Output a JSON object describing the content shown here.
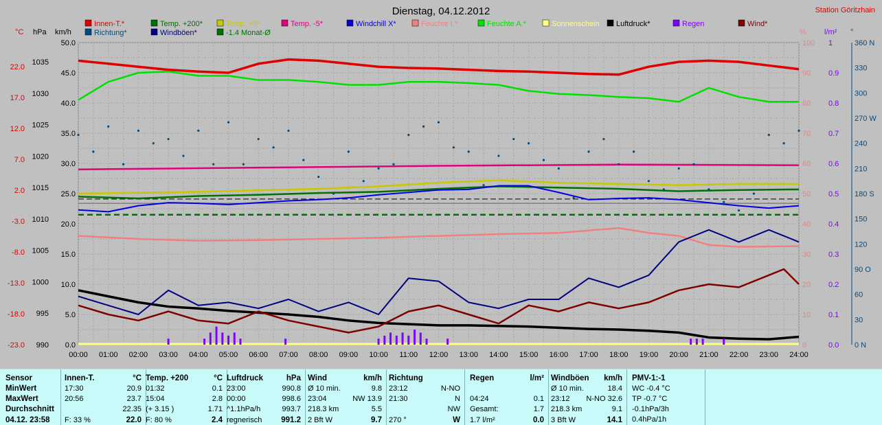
{
  "title": "Dienstag, 04.12.2012",
  "station": "Station Göritzhain",
  "legend": [
    {
      "label": "Innen-T.*",
      "color": "#e00000"
    },
    {
      "label": "Temp. +200*",
      "color": "#007000"
    },
    {
      "label": "Temp. +5*",
      "color": "#c8c800"
    },
    {
      "label": "Temp. -5*",
      "color": "#e0007c"
    },
    {
      "label": "Windchill X*",
      "color": "#0000e8"
    },
    {
      "label": "Feuchte I.*",
      "color": "#f08080"
    },
    {
      "label": "Feuchte A.*",
      "color": "#00e000"
    },
    {
      "label": "Sonnenschein",
      "color": "#ffff80"
    },
    {
      "label": "Luftdruck*",
      "color": "#000000"
    },
    {
      "label": "Regen",
      "color": "#8000ff"
    },
    {
      "label": "Wind*",
      "color": "#800000"
    },
    {
      "label": "Richtung*",
      "color": "#004a80"
    },
    {
      "label": "Windböen*",
      "color": "#000080"
    },
    {
      "label": "-1.4 Monat-Ø",
      "color": "#007000"
    }
  ],
  "axis_units": {
    "temp": "°C",
    "press": "hPa",
    "wind": "km/h",
    "hum": "%",
    "rain": "l/m²",
    "dir": "°"
  },
  "chart_data": {
    "type": "line",
    "x_ticks": [
      "00:00",
      "01:00",
      "02:00",
      "03:00",
      "04:00",
      "05:00",
      "06:00",
      "07:00",
      "08:00",
      "09:00",
      "10:00",
      "11:00",
      "12:00",
      "13:00",
      "14:00",
      "15:00",
      "16:00",
      "17:00",
      "18:00",
      "19:00",
      "20:00",
      "21:00",
      "22:00",
      "23:00",
      "24:00"
    ],
    "temp_ticks": [
      "22.0",
      "17.0",
      "12.0",
      "7.0",
      "2.0",
      "-3.0",
      "-8.0",
      "-13.0",
      "-18.0",
      "-23.0"
    ],
    "press_ticks": [
      "1035",
      "1030",
      "1025",
      "1020",
      "1015",
      "1010",
      "1005",
      "1000",
      "995",
      "990"
    ],
    "wind_ticks": [
      "50.0",
      "45.0",
      "40.0",
      "35.0",
      "30.0",
      "25.0",
      "20.0",
      "15.0",
      "10.0",
      "5.0",
      "0.0"
    ],
    "hum_ticks": [
      "100",
      "90",
      "80",
      "70",
      "60",
      "50",
      "40",
      "30",
      "20",
      "10",
      "0"
    ],
    "rain_ticks": [
      "1",
      "0.9",
      "0.8",
      "0.7",
      "0.6",
      "0.5",
      "0.4",
      "0.3",
      "0.2",
      "0.1",
      "0.0"
    ],
    "dir_ticks": [
      "360 N",
      "330",
      "300",
      "270 W",
      "240",
      "210",
      "180 S",
      "150",
      "120",
      "90 O",
      "60",
      "30",
      "0 N"
    ],
    "wind_range": [
      0,
      50
    ],
    "grid": true,
    "legend_position": "top",
    "series": [
      {
        "name": "Innen-T.*",
        "axis": "wind",
        "x": [
          0,
          1,
          2,
          3,
          4,
          5,
          6,
          7,
          8,
          9,
          10,
          11,
          12,
          13,
          14,
          15,
          16,
          17,
          18,
          19,
          20,
          21,
          22,
          23,
          24
        ],
        "y": [
          47.0,
          46.5,
          46.0,
          45.5,
          45.2,
          45.0,
          46.5,
          47.2,
          47.0,
          46.5,
          46.0,
          45.8,
          45.7,
          45.5,
          45.3,
          45.2,
          45.0,
          44.8,
          44.7,
          46.0,
          46.8,
          47.0,
          46.8,
          46.2,
          45.6
        ]
      },
      {
        "name": "Feuchte A.*",
        "axis": "wind",
        "x": [
          0,
          0.5,
          1,
          2,
          3,
          4,
          5,
          6,
          7,
          8,
          9,
          10,
          11,
          12,
          13,
          14,
          15,
          16,
          17,
          18,
          19,
          20,
          21,
          22,
          23,
          24
        ],
        "y": [
          40.5,
          42.0,
          43.5,
          45.0,
          45.2,
          44.5,
          44.5,
          43.8,
          43.8,
          43.5,
          43.0,
          43.0,
          43.5,
          43.5,
          43.3,
          43.0,
          42.0,
          41.5,
          41.3,
          41.0,
          40.8,
          40.2,
          42.5,
          41.0,
          40.2,
          40.2
        ]
      },
      {
        "name": "Temp. -5*",
        "axis": "wind",
        "x": [
          0,
          6,
          12,
          18,
          24
        ],
        "y": [
          29.0,
          29.3,
          29.6,
          29.8,
          29.7
        ]
      },
      {
        "name": "Temp. +5*",
        "axis": "wind",
        "x": [
          0,
          4,
          8,
          10,
          12,
          14,
          16,
          18,
          20,
          22,
          24
        ],
        "y": [
          25.0,
          25.3,
          25.8,
          26.2,
          26.8,
          27.2,
          26.8,
          26.6,
          26.4,
          26.6,
          26.6
        ]
      },
      {
        "name": "Temp. +200*",
        "axis": "wind",
        "x": [
          0,
          2,
          4,
          6,
          8,
          10,
          12,
          14,
          16,
          18,
          20,
          22,
          24
        ],
        "y": [
          24.5,
          24.2,
          24.6,
          24.8,
          25.1,
          25.3,
          25.8,
          26.2,
          26.0,
          25.8,
          25.4,
          25.6,
          25.7
        ]
      },
      {
        "name": "Windchill X*",
        "axis": "wind",
        "x": [
          0,
          1,
          2,
          3,
          4,
          5,
          6,
          7,
          8,
          9,
          10,
          11,
          12,
          13,
          14,
          15,
          16,
          17,
          18,
          19,
          20,
          21,
          22,
          23,
          24
        ],
        "y": [
          22.3,
          22.0,
          23.0,
          23.5,
          23.4,
          23.2,
          23.5,
          23.8,
          24.0,
          24.3,
          24.8,
          25.2,
          25.6,
          25.7,
          26.3,
          26.3,
          25.2,
          24.0,
          24.2,
          24.3,
          24.0,
          23.5,
          23.0,
          22.6,
          23.0
        ]
      },
      {
        "name": "Feuchte I.*",
        "axis": "wind",
        "x": [
          0,
          2,
          4,
          6,
          8,
          10,
          12,
          14,
          16,
          18,
          19,
          20,
          21,
          22,
          24
        ],
        "y": [
          18.0,
          17.5,
          17.2,
          17.3,
          17.5,
          17.7,
          18.0,
          18.3,
          18.5,
          19.3,
          18.5,
          18.0,
          16.5,
          16.2,
          16.3
        ]
      },
      {
        "name": "Luftdruck*",
        "axis": "wind",
        "x": [
          0,
          1,
          2,
          3,
          4,
          5,
          6,
          7,
          8,
          9,
          10,
          11,
          12,
          13,
          14,
          15,
          16,
          17,
          18,
          19,
          20,
          21,
          22,
          23,
          24
        ],
        "y": [
          9.0,
          8.0,
          7.0,
          6.3,
          6.0,
          5.6,
          5.3,
          5.0,
          4.6,
          4.0,
          3.6,
          3.4,
          3.2,
          3.2,
          3.1,
          3.0,
          2.8,
          2.6,
          2.5,
          2.3,
          2.0,
          1.2,
          1.0,
          0.9,
          1.3
        ]
      },
      {
        "name": "Wind*",
        "axis": "wind",
        "x": [
          0,
          1,
          2,
          3,
          4,
          5,
          6,
          7,
          8,
          9,
          10,
          11,
          12,
          13,
          14,
          15,
          16,
          17,
          18,
          19,
          20,
          21,
          22,
          23,
          23.5,
          24
        ],
        "y": [
          6.5,
          5.0,
          4.0,
          5.5,
          4.0,
          3.5,
          5.5,
          4.0,
          3.0,
          2.0,
          3.0,
          5.5,
          6.5,
          5.0,
          3.5,
          6.5,
          5.5,
          7.0,
          6.0,
          7.0,
          9.0,
          10.0,
          9.5,
          11.5,
          12.5,
          10.0
        ]
      },
      {
        "name": "Windböen*",
        "axis": "wind",
        "x": [
          0,
          1,
          2,
          3,
          4,
          5,
          6,
          7,
          8,
          9,
          10,
          11,
          12,
          13,
          14,
          15,
          16,
          17,
          18,
          19,
          20,
          21,
          22,
          23,
          24
        ],
        "y": [
          8.0,
          6.5,
          5.0,
          9.0,
          6.5,
          7.0,
          6.0,
          7.5,
          5.5,
          7.0,
          5.0,
          11.0,
          10.5,
          7.0,
          6.0,
          7.5,
          7.5,
          11.0,
          9.5,
          11.5,
          17.0,
          19.0,
          17.0,
          19.0,
          17.0
        ]
      },
      {
        "name": "Richtung*",
        "axis": "dir",
        "type": "scatter",
        "x": [
          0,
          0.5,
          1,
          1.5,
          2,
          2.5,
          3,
          3.5,
          4,
          4.5,
          5,
          5.5,
          6,
          6.5,
          7,
          7.5,
          8,
          8.5,
          9,
          9.5,
          10,
          10.5,
          11,
          11.5,
          12,
          12.5,
          13,
          13.5,
          14,
          14.5,
          15,
          15.5,
          16,
          16.5,
          17,
          17.5,
          18,
          18.5,
          19,
          19.5,
          20,
          20.5,
          21,
          21.5,
          22,
          22.5,
          23,
          23.5,
          24
        ],
        "y": [
          250,
          230,
          260,
          215,
          255,
          240,
          245,
          225,
          255,
          215,
          265,
          215,
          245,
          235,
          255,
          220,
          200,
          180,
          230,
          195,
          210,
          215,
          250,
          260,
          265,
          235,
          230,
          190,
          225,
          245,
          240,
          220,
          210,
          175,
          230,
          245,
          215,
          230,
          195,
          185,
          210,
          215,
          185,
          170,
          160,
          180,
          250,
          240,
          255
        ]
      },
      {
        "name": "Regen",
        "axis": "rain",
        "type": "bar",
        "x": [
          3.0,
          4.2,
          4.4,
          4.6,
          4.8,
          5.0,
          5.2,
          5.4,
          6.9,
          10.0,
          10.2,
          10.4,
          10.6,
          10.8,
          11.0,
          11.2,
          11.4,
          11.6,
          12.3,
          20.4,
          20.6,
          20.8,
          21.5
        ],
        "y": [
          0.02,
          0.02,
          0.04,
          0.06,
          0.04,
          0.03,
          0.04,
          0.02,
          0.02,
          0.02,
          0.03,
          0.04,
          0.03,
          0.04,
          0.03,
          0.05,
          0.04,
          0.02,
          0.02,
          0.02,
          0.02,
          0.02,
          0.02
        ]
      },
      {
        "name": "-1.4 Monat-Ø",
        "axis": "wind",
        "style": "dashed",
        "x": [
          0,
          24
        ],
        "y": [
          21.5,
          21.5
        ]
      }
    ],
    "reference_lines": [
      {
        "y": 23.4,
        "color": "#606060",
        "style": "solid"
      },
      {
        "y": 24.1,
        "color": "#000000",
        "style": "dashed"
      }
    ]
  },
  "stats": {
    "rowlabels": {
      "header": "Sensor",
      "min": "MinWert",
      "max": "MaxWert",
      "avg": "Durchschnitt",
      "cur": "04.12. 23:58"
    },
    "innen": {
      "title": "Innen-T.",
      "unit": "°C",
      "min_t": "17:30",
      "min_v": "20.9",
      "max_t": "20:56",
      "max_v": "23.7",
      "avg_v": "22.35",
      "cur_l": "F: 33 %",
      "cur_v": "22.0"
    },
    "temp": {
      "title": "Temp. +200",
      "unit": "°C",
      "min_t": "01:32",
      "min_v": "0.1",
      "max_t": "15:04",
      "max_v": "2.8",
      "avg_t": "(+ 3.15 )",
      "avg_v": "1.71",
      "cur_l": "F: 80 %",
      "cur_v": "2.4"
    },
    "druck": {
      "title": "Luftdruck",
      "unit": "hPa",
      "min_t": "23:00",
      "min_v": "990.8",
      "max_t": "00:00",
      "max_v": "998.6",
      "avg_t": "^1.1hPa/h",
      "avg_v": "993.7",
      "cur_l": "regnerisch",
      "cur_v": "991.2"
    },
    "wind": {
      "title": "Wind",
      "unit": "km/h",
      "min_t": "Ø 10 min.",
      "min_v": "9.8",
      "max_t": "23:04",
      "max_v": "NW 13.9",
      "avg_t": "218.3 km",
      "avg_v": "5.5",
      "cur_l": "2 Bft W",
      "cur_v": "9.7"
    },
    "richtung": {
      "title": "Richtung",
      "min_t": "23:12",
      "min_v": "N-NO",
      "max_t": "21:30",
      "max_v": "N",
      "avg_v": "NW",
      "cur_l": "270 °",
      "cur_v": "W"
    },
    "regen": {
      "title": "Regen",
      "unit": "l/m²",
      "max_t": "04:24",
      "max_v": "0.1",
      "avg_t": "Gesamt:",
      "avg_v": "1.7",
      "cur_l": "1.7 l/m²",
      "cur_v": "0.0"
    },
    "boeen": {
      "title": "Windböen",
      "unit": "km/h",
      "min_t": "Ø 10 min.",
      "min_v": "18.4",
      "max_t": "23:12",
      "max_v": "N-NO 32.6",
      "avg_t": "218.3 km",
      "avg_v": "9.1",
      "cur_l": "3 Bft W",
      "cur_v": "14.1"
    },
    "pmv": {
      "title": "PMV-1:-1",
      "r1": "WC -0.4 °C",
      "r2": "TP -0.7 °C",
      "r3": "-0.1hPa/3h",
      "r4": "0.4hPa/1h"
    }
  }
}
